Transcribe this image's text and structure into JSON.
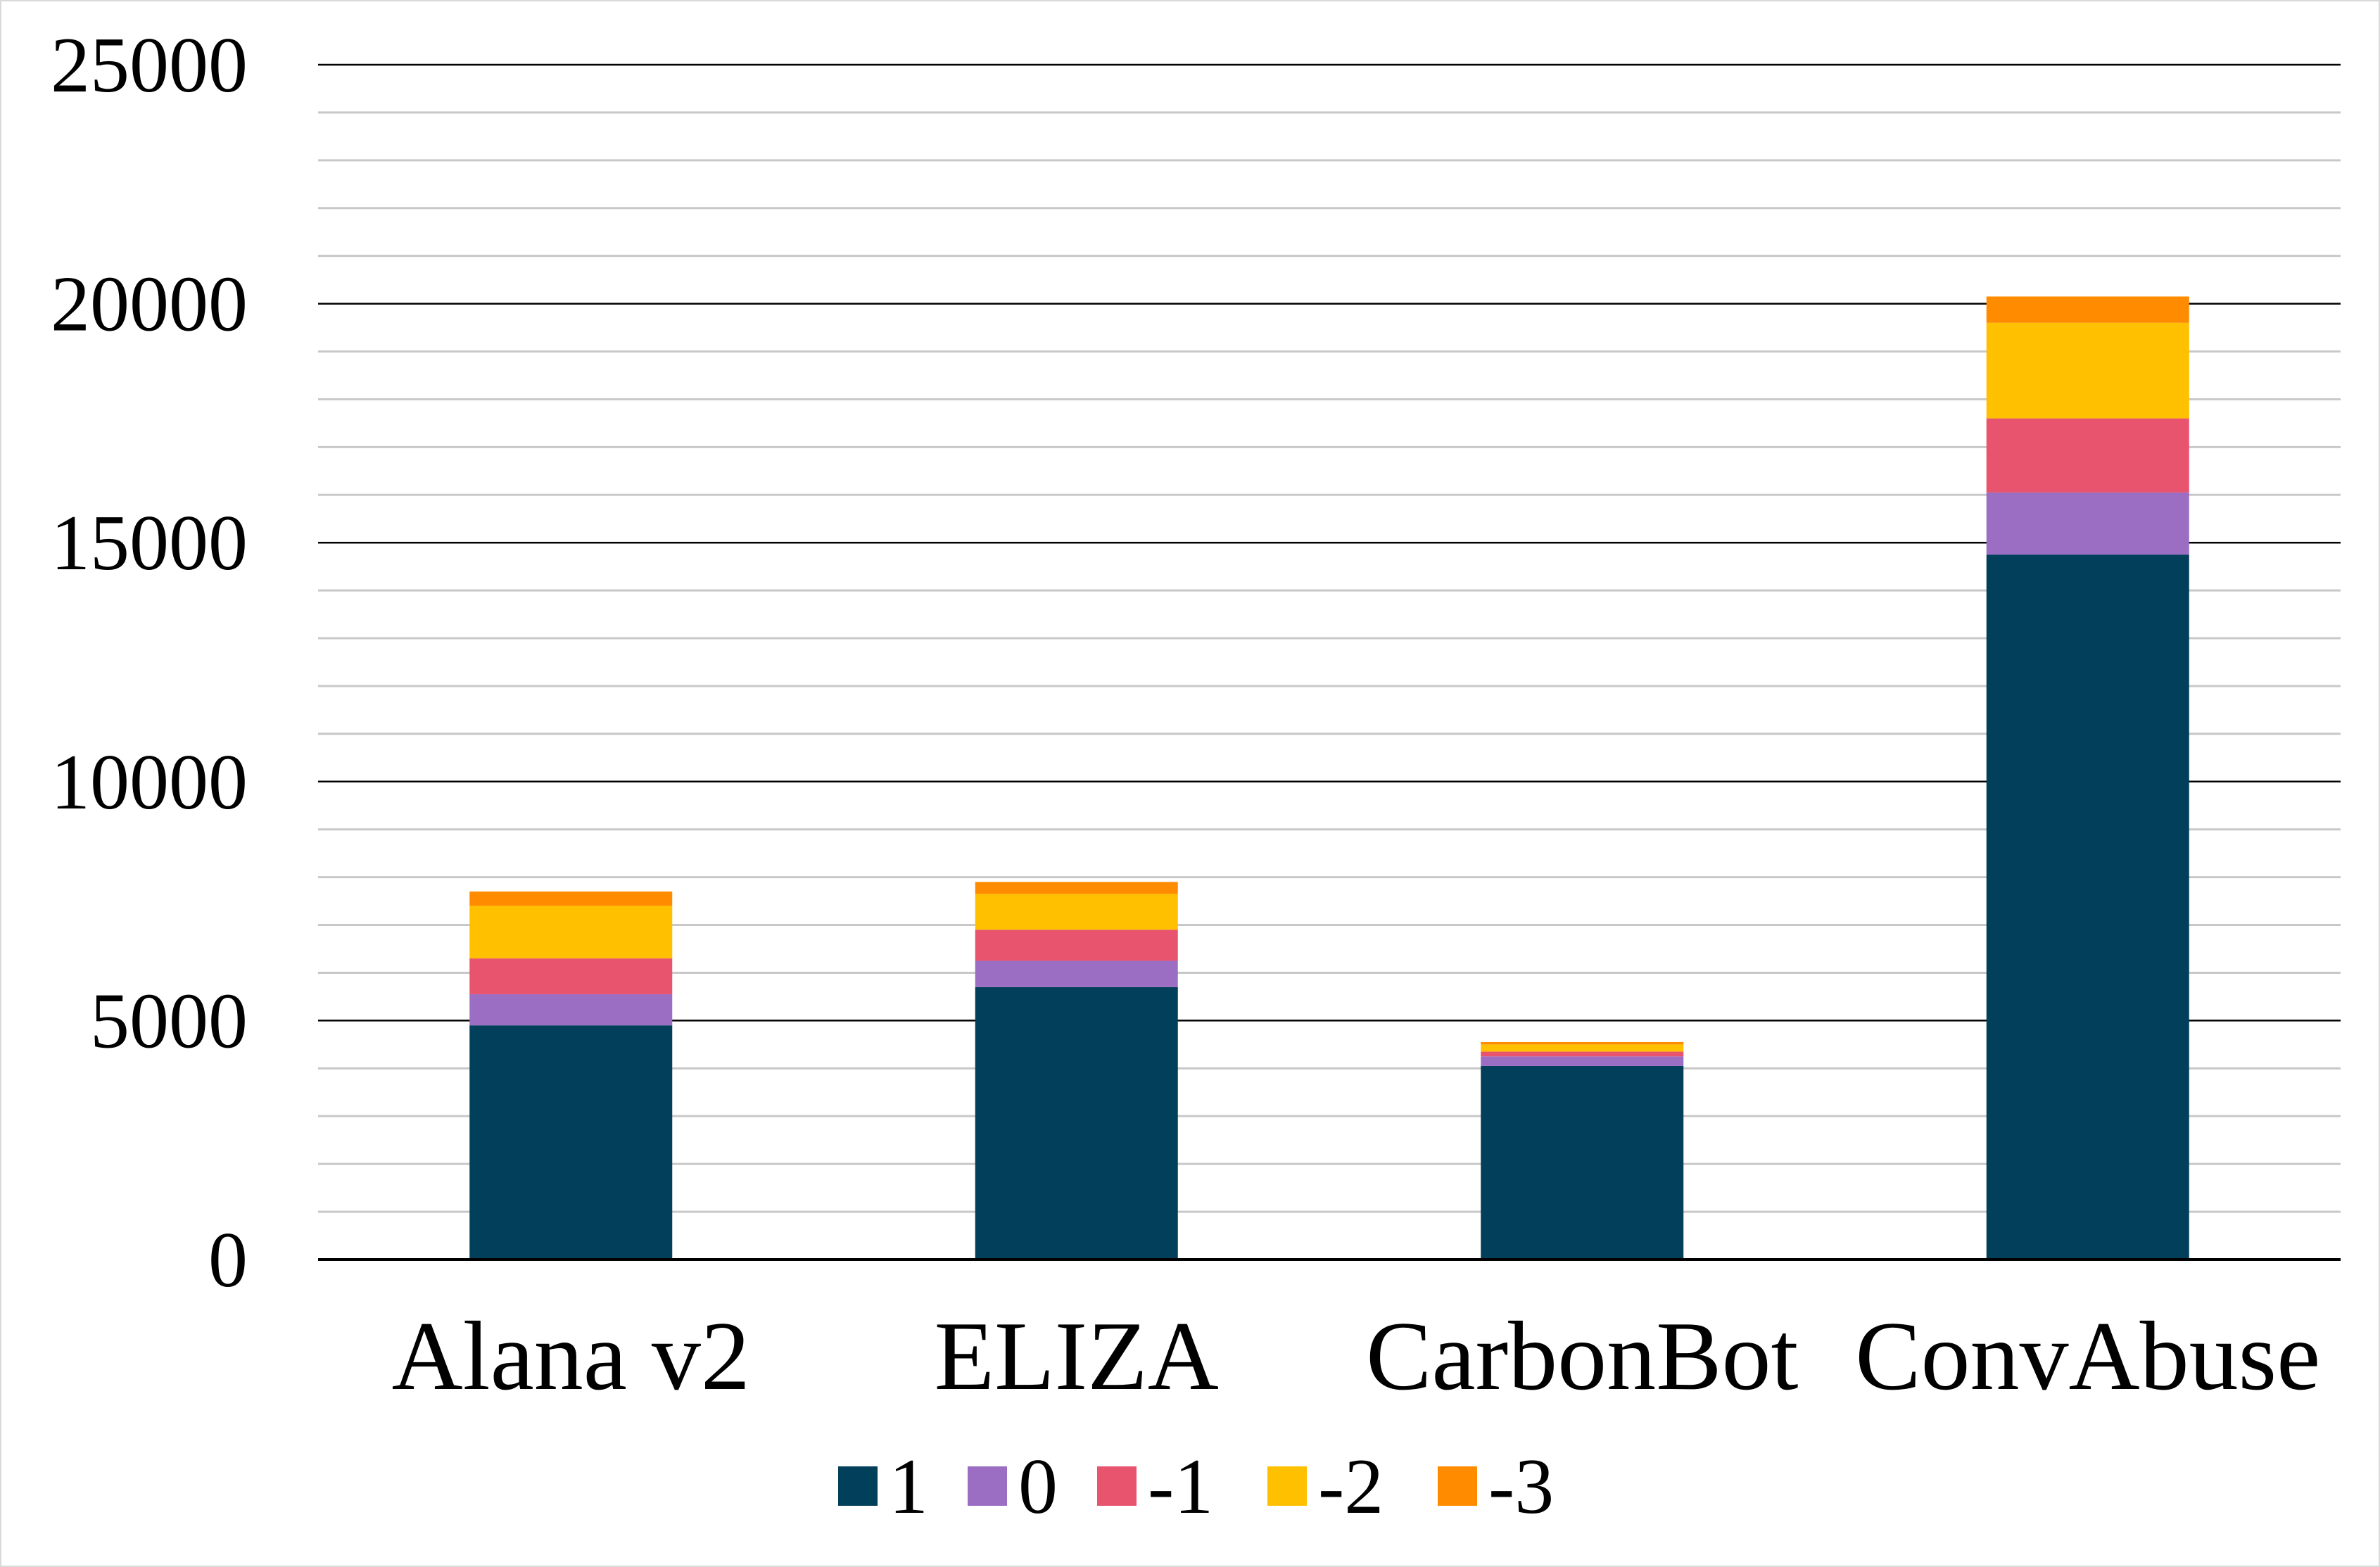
{
  "chart_data": {
    "type": "bar",
    "stacked": true,
    "title": "",
    "xlabel": "",
    "ylabel": "",
    "categories": [
      "Alana v2",
      "ELIZA",
      "CarbonBot",
      "ConvAbuse"
    ],
    "ylim": [
      0,
      25000
    ],
    "yticks": [
      0,
      5000,
      10000,
      15000,
      20000,
      25000
    ],
    "minor_grid_step": 1000,
    "grid": true,
    "legend_position": "bottom",
    "series": [
      {
        "name": "1",
        "color": "#023f5a",
        "values": [
          4900,
          5700,
          4050,
          14750
        ]
      },
      {
        "name": "0",
        "color": "#9b6ec4",
        "values": [
          650,
          550,
          200,
          1300
        ]
      },
      {
        "name": "-1",
        "color": "#e8546e",
        "values": [
          750,
          650,
          100,
          1550
        ]
      },
      {
        "name": "-2",
        "color": "#ffc000",
        "values": [
          1100,
          750,
          150,
          2000
        ]
      },
      {
        "name": "-3",
        "color": "#ff8c00",
        "values": [
          300,
          250,
          50,
          550
        ]
      }
    ]
  }
}
